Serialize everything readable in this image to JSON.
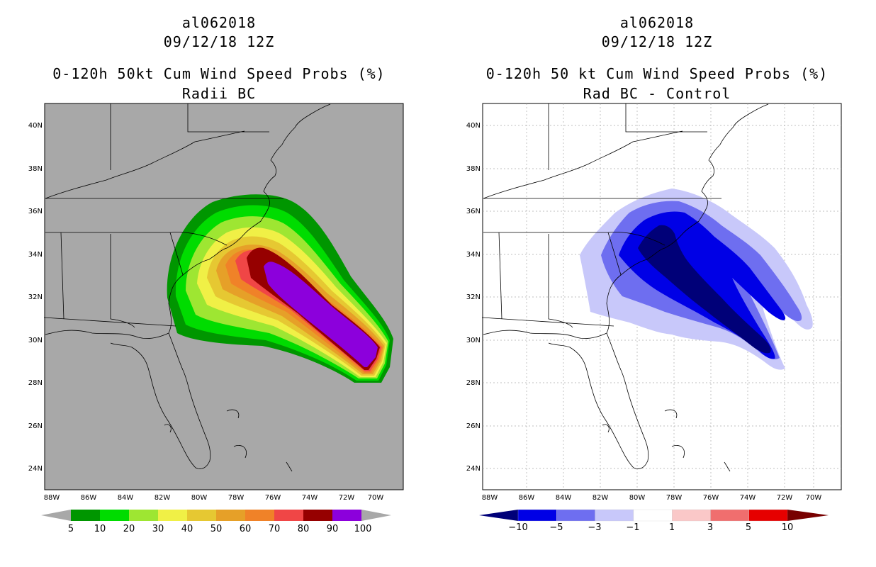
{
  "panels": [
    {
      "storm_id": "al062018",
      "datetime": "09/12/18 12Z",
      "product": "0-120h 50kt Cum Wind Speed Probs (%)",
      "subtitle": "Radii BC",
      "background_color": "#a8a8a8",
      "colorbar": {
        "labels": [
          "5",
          "10",
          "20",
          "30",
          "40",
          "50",
          "60",
          "70",
          "80",
          "90",
          "100"
        ],
        "colors": [
          "#009600",
          "#00dc00",
          "#9ee632",
          "#f0f046",
          "#e6c832",
          "#e6a028",
          "#f08228",
          "#f04646",
          "#960000",
          "#8c00dc"
        ],
        "end_color": "#a8a8a8"
      }
    },
    {
      "storm_id": "al062018",
      "datetime": "09/12/18 12Z",
      "product": "0-120h 50 kt Cum Wind Speed Probs (%)",
      "subtitle": "Rad BC - Control",
      "background_color": "#ffffff",
      "colorbar": {
        "labels": [
          "−10",
          "−5",
          "−3",
          "−1",
          "1",
          "3",
          "5",
          "10"
        ],
        "colors": [
          "#0000e6",
          "#6e6ef0",
          "#c8c8fa",
          "#ffffff",
          "#fac8c8",
          "#f06e6e",
          "#e60000"
        ],
        "end_left": "#000078",
        "end_right": "#780000"
      }
    }
  ],
  "lat_labels": [
    "40N",
    "38N",
    "36N",
    "34N",
    "32N",
    "30N",
    "28N",
    "26N",
    "24N"
  ],
  "lon_labels": [
    "88W",
    "86W",
    "84W",
    "82W",
    "80W",
    "78W",
    "76W",
    "74W",
    "72W",
    "70W"
  ],
  "map_extent": {
    "lon_min": -88.6,
    "lon_max": -69.2,
    "lat_min": 23.0,
    "lat_max": 41.0
  }
}
